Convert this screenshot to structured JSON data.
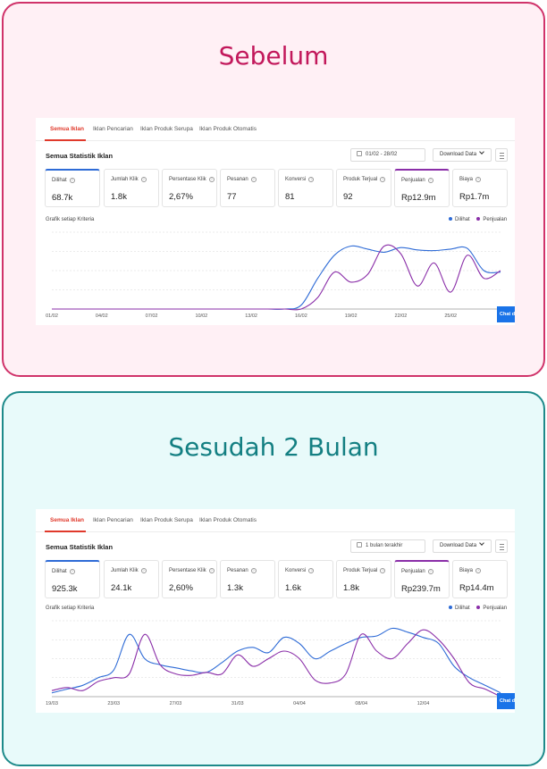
{
  "colors": {
    "dilihat": "#2e6bd6",
    "penjualan": "#8a2ea8",
    "tab_active": "#e0392b"
  },
  "panels": [
    {
      "heading": "Sebelum",
      "tabs": [
        "Semua Iklan",
        "Iklan Pencarian",
        "Iklan Produk Serupa",
        "Iklan Produk Otomatis"
      ],
      "section_title": "Semua Statistik Iklan",
      "date_range": "01/02 - 28/02",
      "download_label": "Download Data",
      "metrics": [
        {
          "label": "Dilihat",
          "value": "68.7k"
        },
        {
          "label": "Jumlah Klik",
          "value": "1.8k"
        },
        {
          "label": "Persentase Klik",
          "value": "2,67%"
        },
        {
          "label": "Pesanan",
          "value": "77"
        },
        {
          "label": "Konversi",
          "value": "81"
        },
        {
          "label": "Produk Terjual",
          "value": "92"
        },
        {
          "label": "Penjualan",
          "value": "Rp12.9m"
        },
        {
          "label": "Biaya",
          "value": "Rp1.7m"
        }
      ],
      "chart_label": "Grafik setiap Kriteria",
      "legend": [
        "Dilihat",
        "Penjualan"
      ],
      "chat_label": "Chat d",
      "chart_data": {
        "type": "line",
        "x": [
          "01/02",
          "02/02",
          "03/02",
          "04/02",
          "05/02",
          "06/02",
          "07/02",
          "08/02",
          "09/02",
          "10/02",
          "11/02",
          "12/02",
          "13/02",
          "14/02",
          "15/02",
          "16/02",
          "17/02",
          "18/02",
          "19/02",
          "20/02",
          "21/02",
          "22/02",
          "23/02",
          "24/02",
          "25/02",
          "26/02",
          "27/02",
          "28/02"
        ],
        "x_tick_labels": [
          "01/02",
          "04/02",
          "07/02",
          "10/02",
          "13/02",
          "16/02",
          "19/02",
          "22/02",
          "25/02"
        ],
        "series": [
          {
            "name": "Dilihat",
            "values": [
              0,
              0,
              0,
              0,
              0,
              0,
              0,
              0,
              0,
              0,
              0,
              0,
              0,
              0,
              0,
              5,
              40,
              70,
              82,
              78,
              74,
              80,
              77,
              76,
              78,
              79,
              50,
              48
            ]
          },
          {
            "name": "Penjualan",
            "values": [
              0,
              0,
              0,
              0,
              0,
              0,
              0,
              0,
              0,
              0,
              0,
              0,
              0,
              0,
              0,
              0,
              15,
              48,
              35,
              45,
              82,
              72,
              30,
              60,
              22,
              70,
              40,
              50
            ]
          }
        ],
        "ylim": [
          0,
          100
        ]
      }
    },
    {
      "heading": "Sesudah 2 Bulan",
      "tabs": [
        "Semua Iklan",
        "Iklan Pencarian",
        "Iklan Produk Serupa",
        "Iklan Produk Otomatis"
      ],
      "section_title": "Semua Statistik Iklan",
      "date_range": "1 bulan terakhir",
      "download_label": "Download Data",
      "metrics": [
        {
          "label": "Dilihat",
          "value": "925.3k"
        },
        {
          "label": "Jumlah Klik",
          "value": "24.1k"
        },
        {
          "label": "Persentase Klik",
          "value": "2,60%"
        },
        {
          "label": "Pesanan",
          "value": "1.3k"
        },
        {
          "label": "Konversi",
          "value": "1.6k"
        },
        {
          "label": "Produk Terjual",
          "value": "1.8k"
        },
        {
          "label": "Penjualan",
          "value": "Rp239.7m"
        },
        {
          "label": "Biaya",
          "value": "Rp14.4m"
        }
      ],
      "chart_label": "Grafik setiap Kriteria",
      "legend": [
        "Dilihat",
        "Penjualan"
      ],
      "chat_label": "Chat d",
      "chart_data": {
        "type": "line",
        "x": [
          "19/03",
          "20/03",
          "21/03",
          "22/03",
          "23/03",
          "24/03",
          "25/03",
          "26/03",
          "27/03",
          "28/03",
          "29/03",
          "30/03",
          "31/03",
          "01/04",
          "02/04",
          "03/04",
          "04/04",
          "05/04",
          "06/04",
          "07/04",
          "08/04",
          "09/04",
          "10/04",
          "11/04",
          "12/04",
          "13/04",
          "14/04",
          "15/04",
          "16/04",
          "17/04"
        ],
        "x_tick_labels": [
          "19/03",
          "23/03",
          "27/03",
          "31/03",
          "04/04",
          "08/04",
          "12/04"
        ],
        "series": [
          {
            "name": "Dilihat",
            "values": [
              5,
              10,
              15,
              25,
              35,
              82,
              50,
              42,
              38,
              34,
              32,
              45,
              60,
              65,
              58,
              78,
              70,
              50,
              60,
              70,
              78,
              80,
              90,
              85,
              78,
              70,
              40,
              25,
              15,
              5
            ]
          },
          {
            "name": "Penjualan",
            "values": [
              8,
              12,
              8,
              20,
              25,
              30,
              82,
              42,
              30,
              28,
              32,
              30,
              55,
              40,
              50,
              60,
              50,
              22,
              18,
              30,
              82,
              60,
              50,
              70,
              88,
              75,
              50,
              18,
              10,
              0
            ]
          }
        ],
        "ylim": [
          0,
          100
        ]
      }
    }
  ]
}
